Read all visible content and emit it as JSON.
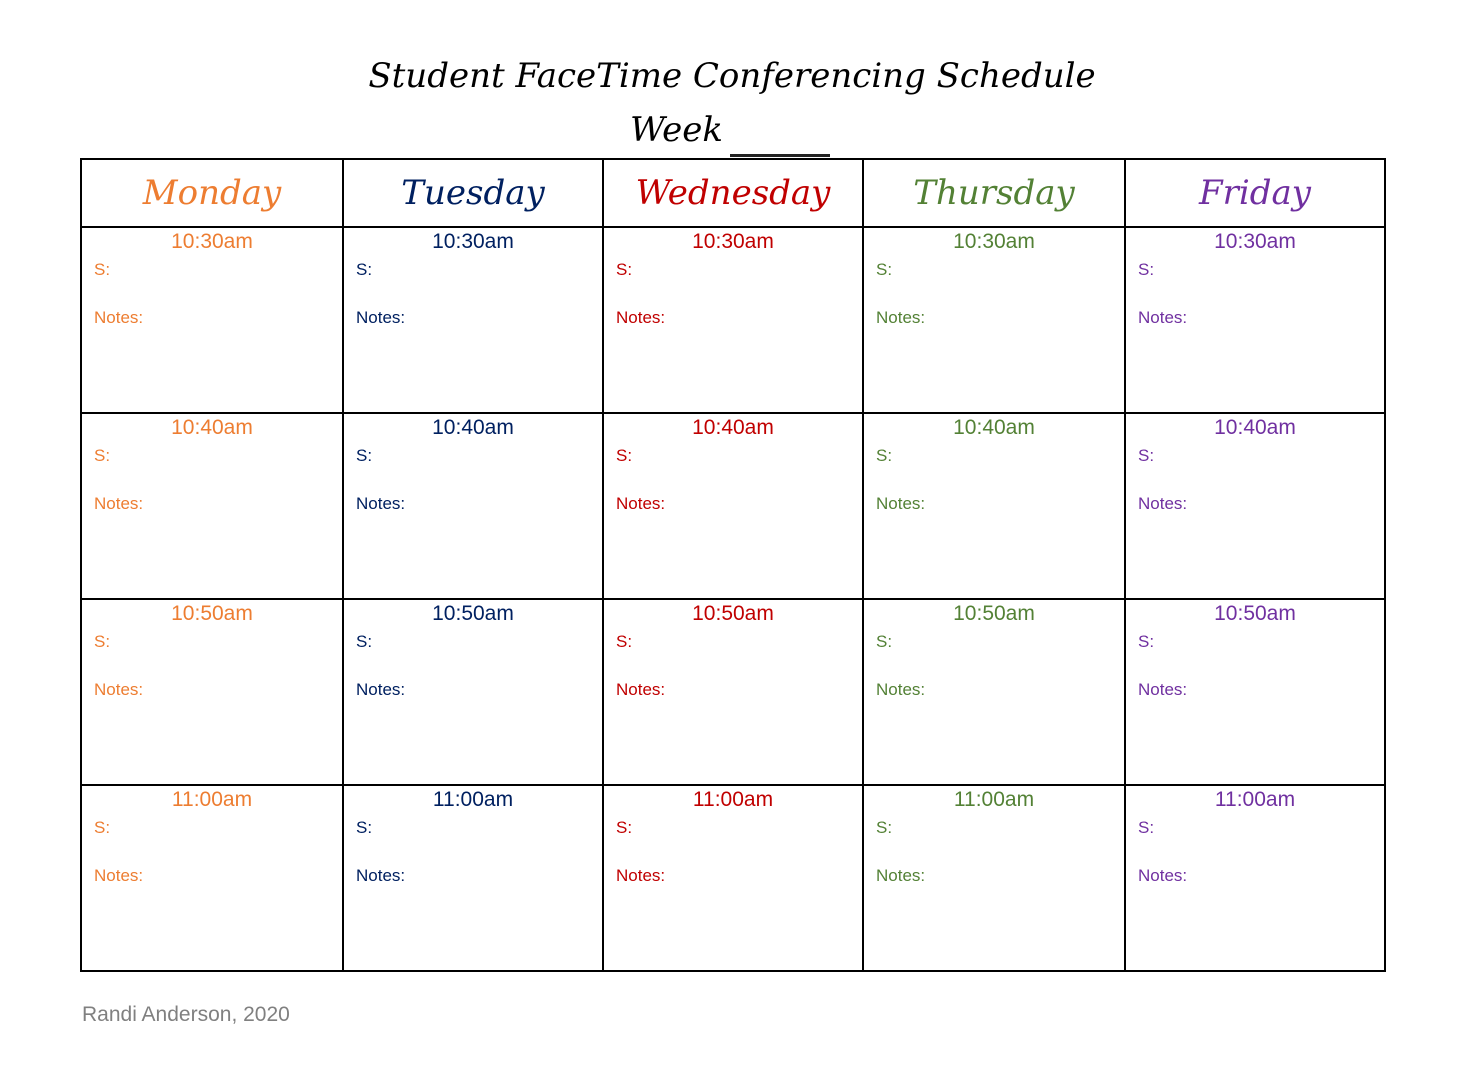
{
  "title": "Student FaceTime Conferencing Schedule",
  "week_label": "Week",
  "days": [
    {
      "name": "Monday",
      "color": "#ED7D31"
    },
    {
      "name": "Tuesday",
      "color": "#002060"
    },
    {
      "name": "Wednesday",
      "color": "#C00000"
    },
    {
      "name": "Thursday",
      "color": "#538135"
    },
    {
      "name": "Friday",
      "color": "#7030A0"
    }
  ],
  "times": [
    "10:30am",
    "10:40am",
    "10:50am",
    "11:00am"
  ],
  "student_label": "S:",
  "notes_label": "Notes:",
  "footer": "Randi Anderson, 2020"
}
